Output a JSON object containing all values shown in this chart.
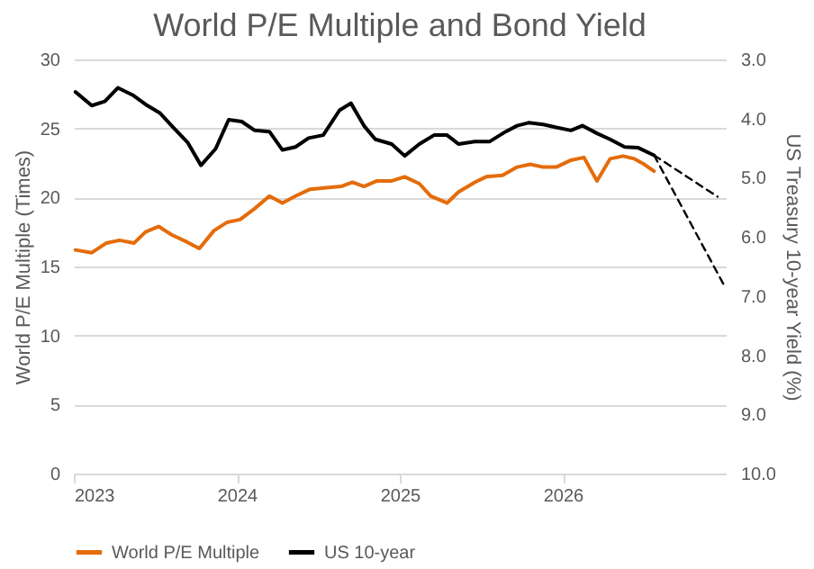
{
  "chart_data": {
    "type": "line",
    "title": "World P/E Multiple and Bond Yield",
    "ylabel": "World P/E Multiple (Times)",
    "y2label": "US Treasury 10-year Yield (%)",
    "xlim": [
      2023,
      2027
    ],
    "xticks": [
      2023,
      2024,
      2025,
      2026
    ],
    "ylim": [
      0,
      30
    ],
    "yticks": [
      0,
      5,
      10,
      15,
      20,
      25,
      30
    ],
    "y2lim": [
      10,
      3
    ],
    "y2ticks": [
      {
        "value": 3,
        "label": "3.0"
      },
      {
        "value": 4,
        "label": "4.0"
      },
      {
        "value": 5,
        "label": "5.0"
      },
      {
        "value": 6,
        "label": "6.0"
      },
      {
        "value": 7,
        "label": "7.0"
      },
      {
        "value": 8,
        "label": "8.0"
      },
      {
        "value": 9,
        "label": "9.0"
      },
      {
        "value": 10,
        "label": "10.0"
      }
    ],
    "grid": "y",
    "legend": "bottom",
    "marker": "none",
    "series": [
      {
        "name": "World P/E Multiple",
        "color": "#e46c0a",
        "x": [
          2023.01,
          2023.11,
          2023.2,
          2023.28,
          2023.37,
          2023.44,
          2023.52,
          2023.6,
          2023.69,
          2023.77,
          2023.86,
          2023.94,
          2024.02,
          2024.11,
          2024.2,
          2024.28,
          2024.36,
          2024.45,
          2024.55,
          2024.64,
          2024.71,
          2024.78,
          2024.86,
          2024.95,
          2025.03,
          2025.12,
          2025.19,
          2025.29,
          2025.36,
          2025.46,
          2025.53,
          2025.63,
          2025.72,
          2025.8,
          2025.88,
          2025.96,
          2026.05,
          2026.13,
          2026.21,
          2026.29,
          2026.37,
          2026.44,
          2026.5,
          2026.56
        ],
        "values": [
          16.2,
          16.0,
          16.7,
          16.9,
          16.7,
          17.5,
          17.9,
          17.3,
          16.8,
          16.3,
          17.6,
          18.2,
          18.4,
          19.2,
          20.1,
          19.6,
          20.1,
          20.6,
          20.7,
          20.8,
          21.1,
          20.8,
          21.2,
          21.2,
          21.5,
          21.0,
          20.1,
          19.6,
          20.4,
          21.1,
          21.5,
          21.6,
          22.2,
          22.4,
          22.2,
          22.2,
          22.7,
          22.9,
          21.2,
          22.8,
          23.0,
          22.8,
          22.4,
          21.9
        ]
      },
      {
        "name": "US 10-year",
        "color": "#000000",
        "axis": "y2",
        "x": [
          2023.01,
          2023.11,
          2023.19,
          2023.27,
          2023.36,
          2023.44,
          2023.53,
          2023.6,
          2023.7,
          2023.78,
          2023.87,
          2023.95,
          2024.03,
          2024.11,
          2024.2,
          2024.28,
          2024.36,
          2024.44,
          2024.53,
          2024.63,
          2024.7,
          2024.78,
          2024.85,
          2024.95,
          2025.03,
          2025.12,
          2025.21,
          2025.29,
          2025.36,
          2025.46,
          2025.55,
          2025.65,
          2025.72,
          2025.79,
          2025.88,
          2025.96,
          2026.05,
          2026.12,
          2026.21,
          2026.29,
          2026.38,
          2026.46,
          2026.56
        ],
        "values": [
          3.55,
          3.78,
          3.71,
          3.48,
          3.6,
          3.76,
          3.91,
          4.12,
          4.41,
          4.79,
          4.51,
          4.02,
          4.05,
          4.2,
          4.22,
          4.53,
          4.48,
          4.33,
          4.28,
          3.86,
          3.74,
          4.12,
          4.35,
          4.43,
          4.63,
          4.43,
          4.28,
          4.28,
          4.43,
          4.39,
          4.39,
          4.22,
          4.12,
          4.07,
          4.1,
          4.15,
          4.2,
          4.12,
          4.25,
          4.35,
          4.48,
          4.49,
          4.62
        ]
      },
      {
        "color": "#000000",
        "axis": "y2",
        "line_style": "dashed",
        "x": [
          2026.56,
          2026.95
        ],
        "values": [
          4.62,
          5.32
        ]
      },
      {
        "color": "#000000",
        "axis": "y2",
        "line_style": "dashed",
        "x": [
          2026.56,
          2027.0
        ],
        "values": [
          4.62,
          6.87
        ]
      }
    ]
  }
}
